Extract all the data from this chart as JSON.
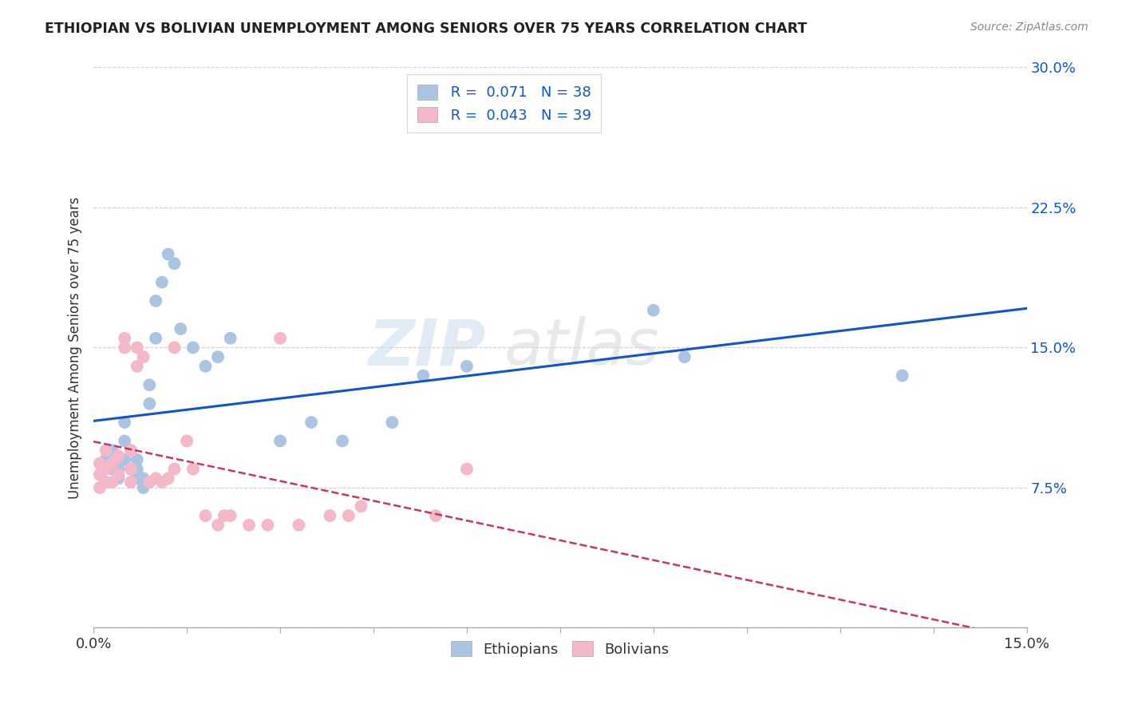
{
  "title": "ETHIOPIAN VS BOLIVIAN UNEMPLOYMENT AMONG SENIORS OVER 75 YEARS CORRELATION CHART",
  "source": "Source: ZipAtlas.com",
  "ylabel": "Unemployment Among Seniors over 75 years",
  "xlim": [
    0.0,
    0.15
  ],
  "ylim": [
    0.0,
    0.3
  ],
  "xticks": [
    0.0,
    0.015,
    0.03,
    0.045,
    0.06,
    0.075,
    0.09,
    0.105,
    0.12,
    0.135,
    0.15
  ],
  "yticks": [
    0.0,
    0.075,
    0.15,
    0.225,
    0.3
  ],
  "color_ethiopians": "#aac4e2",
  "color_bolivians": "#f4b8c8",
  "line_color_ethiopians": "#1155cc",
  "line_color_bolivians": "#cc3366",
  "R_ethiopians": 0.071,
  "N_ethiopians": 38,
  "R_bolivians": 0.043,
  "N_bolivians": 39,
  "watermark": "ZIPatlas",
  "background_color": "#ffffff",
  "grid_color": "#cccccc",
  "ethiopians_x": [
    0.001,
    0.002,
    0.002,
    0.003,
    0.003,
    0.004,
    0.004,
    0.005,
    0.005,
    0.005,
    0.006,
    0.006,
    0.007,
    0.007,
    0.007,
    0.008,
    0.008,
    0.009,
    0.009,
    0.01,
    0.01,
    0.011,
    0.012,
    0.013,
    0.014,
    0.016,
    0.018,
    0.02,
    0.022,
    0.03,
    0.035,
    0.04,
    0.048,
    0.053,
    0.06,
    0.09,
    0.095,
    0.13
  ],
  "ethiopians_y": [
    0.082,
    0.078,
    0.09,
    0.085,
    0.095,
    0.08,
    0.085,
    0.09,
    0.1,
    0.11,
    0.085,
    0.095,
    0.08,
    0.085,
    0.09,
    0.075,
    0.08,
    0.12,
    0.13,
    0.155,
    0.175,
    0.185,
    0.2,
    0.195,
    0.16,
    0.15,
    0.14,
    0.145,
    0.155,
    0.1,
    0.11,
    0.1,
    0.11,
    0.135,
    0.14,
    0.17,
    0.145,
    0.135
  ],
  "bolivians_x": [
    0.001,
    0.001,
    0.001,
    0.002,
    0.002,
    0.002,
    0.003,
    0.003,
    0.004,
    0.004,
    0.005,
    0.005,
    0.006,
    0.006,
    0.006,
    0.007,
    0.007,
    0.008,
    0.009,
    0.01,
    0.011,
    0.012,
    0.013,
    0.013,
    0.015,
    0.016,
    0.018,
    0.02,
    0.021,
    0.022,
    0.025,
    0.028,
    0.03,
    0.033,
    0.038,
    0.041,
    0.043,
    0.055,
    0.06
  ],
  "bolivians_y": [
    0.075,
    0.082,
    0.088,
    0.078,
    0.085,
    0.095,
    0.078,
    0.088,
    0.082,
    0.092,
    0.15,
    0.155,
    0.078,
    0.085,
    0.095,
    0.14,
    0.15,
    0.145,
    0.078,
    0.08,
    0.078,
    0.08,
    0.085,
    0.15,
    0.1,
    0.085,
    0.06,
    0.055,
    0.06,
    0.06,
    0.055,
    0.055,
    0.155,
    0.055,
    0.06,
    0.06,
    0.065,
    0.06,
    0.085
  ]
}
